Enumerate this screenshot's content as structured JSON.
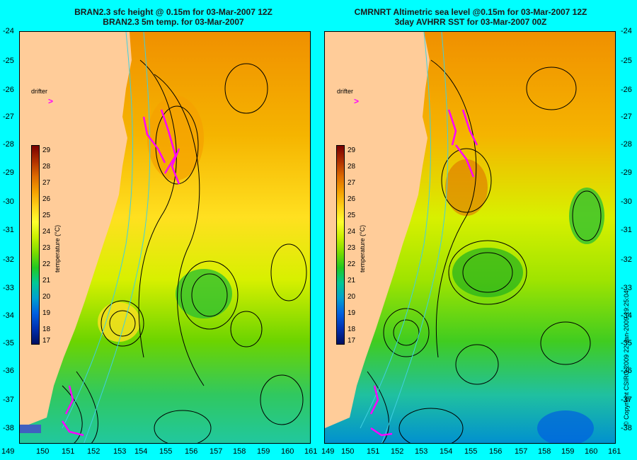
{
  "left_panel": {
    "title_line1": "BRAN2.3 sfc height @ 0.15m for 03-Mar-2007 12Z",
    "title_line2": "BRAN2.3 5m temp. for 03-Mar-2007",
    "drifter_label": "drifter"
  },
  "right_panel": {
    "title_line1": "CMRNRT Altimetric sea level  @0.15m  for 03-Mar-2007 12Z",
    "title_line2": "3day AVHRR SST for 03-Mar-2007 00Z",
    "drifter_label": "drifter"
  },
  "lat_labels": [
    "-24",
    "-25",
    "-26",
    "-27",
    "-28",
    "-29",
    "-30",
    "-31",
    "-32",
    "-33",
    "-34",
    "-35",
    "-36",
    "-37",
    "-38"
  ],
  "lon_labels_left": [
    "149",
    "150",
    "151",
    "152",
    "153",
    "154",
    "155",
    "156",
    "157",
    "158",
    "159",
    "160",
    "161"
  ],
  "lon_labels_right": [
    "149",
    "150",
    "151",
    "152",
    "153",
    "154",
    "155",
    "156",
    "157",
    "158",
    "159",
    "160",
    "161"
  ],
  "colorbar": {
    "ticks": [
      "29",
      "28",
      "27",
      "26",
      "25",
      "24",
      "23",
      "22",
      "21",
      "20",
      "19",
      "18",
      "17"
    ],
    "unit": "temperature (°C)"
  },
  "copyright": "© Copyright CSIRO 2009  22-Jan-2009 19:25:04",
  "colors": {
    "land": "#ffcc99",
    "ocean_warm": "#f5a000",
    "ocean_mid": "#c8f000",
    "ocean_cool": "#22c822",
    "contour": "#000000",
    "bathymetry": "#40d0e0",
    "drifter": "#ff00ff",
    "background": "#00ffff"
  }
}
